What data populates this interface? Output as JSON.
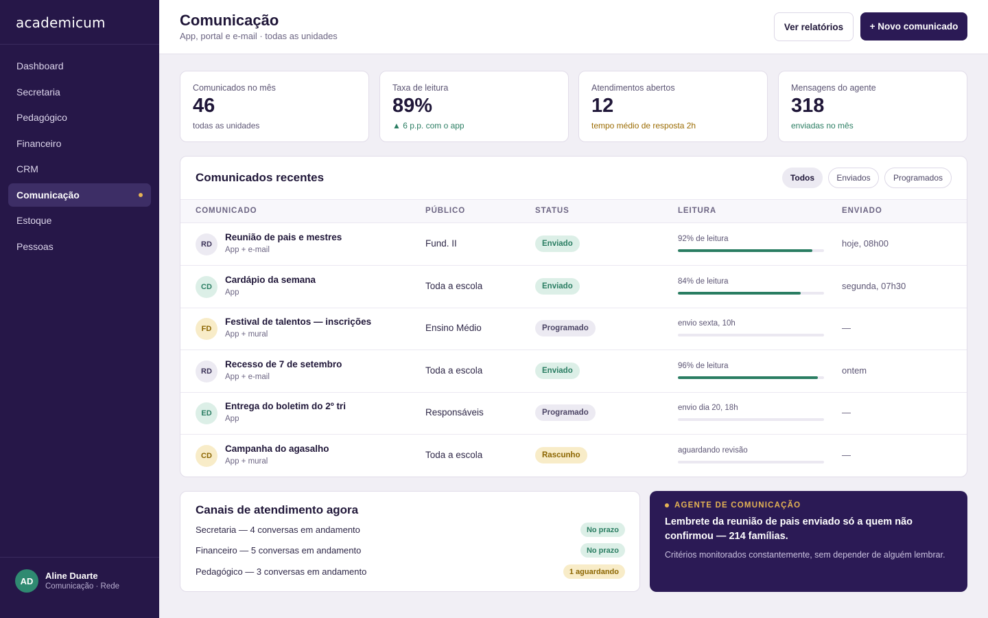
{
  "brand": {
    "logo": "academicum"
  },
  "sidebar": {
    "items": [
      {
        "label": "Dashboard"
      },
      {
        "label": "Secretaria"
      },
      {
        "label": "Pedagógico"
      },
      {
        "label": "Financeiro"
      },
      {
        "label": "CRM"
      },
      {
        "label": "Comunicação",
        "active": true
      },
      {
        "label": "Estoque"
      },
      {
        "label": "Pessoas"
      }
    ],
    "user": {
      "initials": "AD",
      "name": "Aline Duarte",
      "role": "Comunicação · Rede"
    }
  },
  "header": {
    "title": "Comunicação",
    "subtitle": "App, portal e e-mail · todas as unidades",
    "reports_button": "Ver relatórios",
    "new_button": "+ Novo comunicado"
  },
  "stats": [
    {
      "label": "Comunicados no mês",
      "value": "46",
      "note": "todas as unidades"
    },
    {
      "label": "Taxa de leitura",
      "value": "89%",
      "note": "▲ 6 p.p. com o app"
    },
    {
      "label": "Atendimentos abertos",
      "value": "12",
      "note": "tempo médio de resposta 2h"
    },
    {
      "label": "Mensagens do agente",
      "value": "318",
      "note": "enviadas no mês"
    }
  ],
  "recent": {
    "title": "Comunicados recentes",
    "filters": [
      "Todos",
      "Enviados",
      "Programados"
    ],
    "active_filter": "Todos",
    "columns": [
      "COMUNICADO",
      "PÚBLICO",
      "STATUS",
      "LEITURA",
      "ENVIADO"
    ],
    "rows": [
      {
        "initials": "RD",
        "title": "Reunião de pais e mestres",
        "channel": "App + e-mail",
        "audience": "Fund. II",
        "status": "Enviado",
        "reading": "92% de leitura",
        "read_fraction": 0.92,
        "sent": "hoje, 08h00"
      },
      {
        "initials": "CD",
        "title": "Cardápio da semana",
        "channel": "App",
        "audience": "Toda a escola",
        "status": "Enviado",
        "reading": "84% de leitura",
        "read_fraction": 0.84,
        "sent": "segunda, 07h30"
      },
      {
        "initials": "FD",
        "title": "Festival de talentos — inscrições",
        "channel": "App + mural",
        "audience": "Ensino Médio",
        "status": "Programado",
        "reading": "envio sexta, 10h",
        "read_fraction": 0,
        "sent": "—"
      },
      {
        "initials": "RD",
        "title": "Recesso de 7 de setembro",
        "channel": "App + e-mail",
        "audience": "Toda a escola",
        "status": "Enviado",
        "reading": "96% de leitura",
        "read_fraction": 0.96,
        "sent": "ontem"
      },
      {
        "initials": "ED",
        "title": "Entrega do boletim do 2º tri",
        "channel": "App",
        "audience": "Responsáveis",
        "status": "Programado",
        "reading": "envio dia 20, 18h",
        "read_fraction": 0,
        "sent": "—"
      },
      {
        "initials": "CD",
        "title": "Campanha do agasalho",
        "channel": "App + mural",
        "audience": "Toda a escola",
        "status": "Rascunho",
        "reading": "aguardando revisão",
        "read_fraction": 0,
        "sent": "—"
      }
    ]
  },
  "channels": {
    "title": "Canais de atendimento agora",
    "items": [
      {
        "label": "Secretaria — 4 conversas em andamento",
        "badge": "No prazo"
      },
      {
        "label": "Financeiro — 5 conversas em andamento",
        "badge": "No prazo"
      },
      {
        "label": "Pedagógico — 3 conversas em andamento",
        "badge": "1 aguardando"
      }
    ]
  },
  "agent": {
    "tag": "AGENTE DE COMUNICAÇÃO",
    "title": "Lembrete da reunião de pais enviado só a quem não confirmou — 214 famílias.",
    "description": "Critérios monitorados constantemente, sem depender de alguém lembrar."
  },
  "colors": {
    "sidebar": "#261748",
    "primary": "#2b1a55",
    "accent": "#e6b454",
    "success": "#2a7d62"
  }
}
